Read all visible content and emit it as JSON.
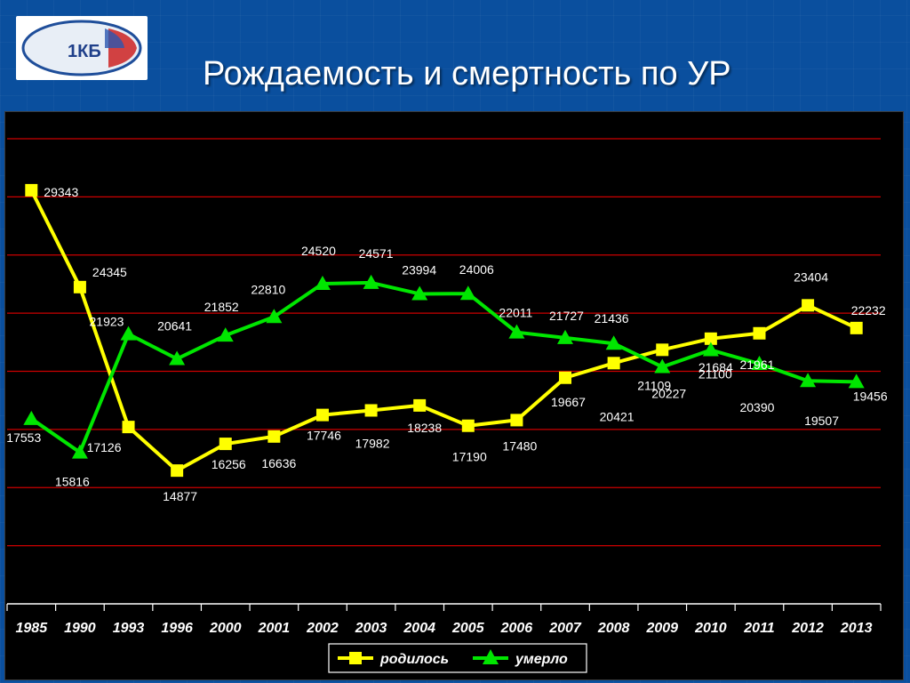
{
  "slide": {
    "title": "Рождаемость и смертность по УР"
  },
  "logo": {
    "icon": "hospital-logo-icon",
    "text": "1КБ"
  },
  "chart_data": {
    "type": "line",
    "title": "Рождаемость и смертность по УР",
    "xlabel": "",
    "ylabel": "",
    "categories": [
      "1985",
      "1990",
      "1993",
      "1996",
      "2000",
      "2001",
      "2002",
      "2003",
      "2004",
      "2005",
      "2006",
      "2007",
      "2008",
      "2009",
      "2010",
      "2011",
      "2012",
      "2013"
    ],
    "ylim": [
      8000,
      32000
    ],
    "grid": true,
    "legend_position": "bottom",
    "series": [
      {
        "name": "родилось",
        "color": "#ffff00",
        "marker": "square",
        "values": [
          29343,
          24345,
          17126,
          14877,
          16256,
          16636,
          17746,
          17982,
          18238,
          17190,
          17480,
          19667,
          20421,
          21109,
          21684,
          21961,
          23404,
          22232
        ]
      },
      {
        "name": "умерло",
        "color": "#00e600",
        "marker": "triangle",
        "values": [
          17553,
          15816,
          21923,
          20641,
          21852,
          22810,
          24520,
          24571,
          23994,
          24006,
          22011,
          21727,
          21436,
          20227,
          21100,
          20390,
          19507,
          19456
        ]
      }
    ],
    "colors": {
      "background": "#000000",
      "gridline": "#cc0000",
      "slide": "#0a4f9e"
    }
  }
}
